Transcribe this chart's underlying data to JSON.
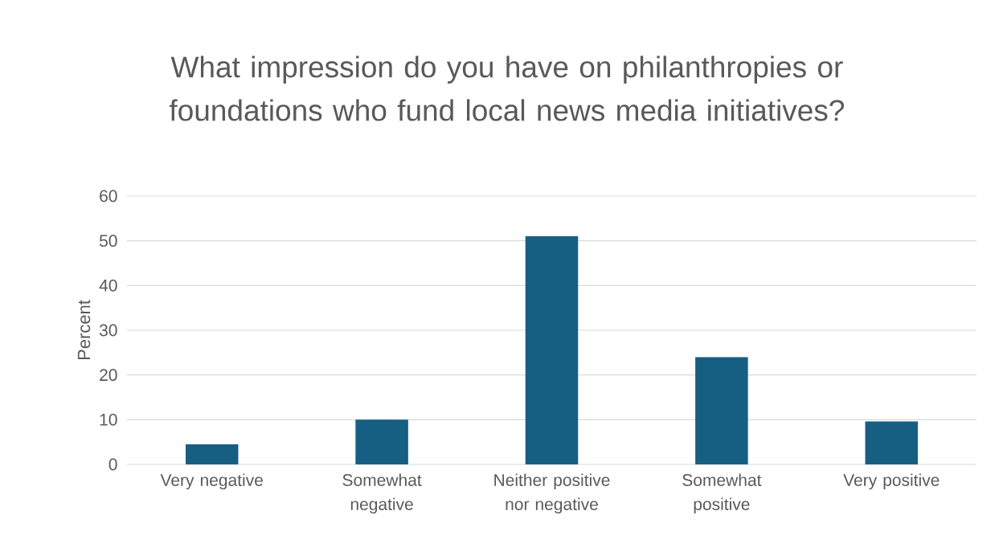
{
  "chart_data": {
    "type": "bar",
    "title": "What impression do you have on philanthropies or foundations who fund local news media initiatives?",
    "ylabel": "Percent",
    "categories": [
      "Very negative",
      "Somewhat negative",
      "Neither positive nor negative",
      "Somewhat positive",
      "Very positive"
    ],
    "values": [
      4.5,
      10,
      51,
      24,
      9.6
    ],
    "color": "#175e83",
    "ylim": [
      0,
      60
    ],
    "yticks": [
      0,
      10,
      20,
      30,
      40,
      50,
      60
    ],
    "grid": "y"
  }
}
